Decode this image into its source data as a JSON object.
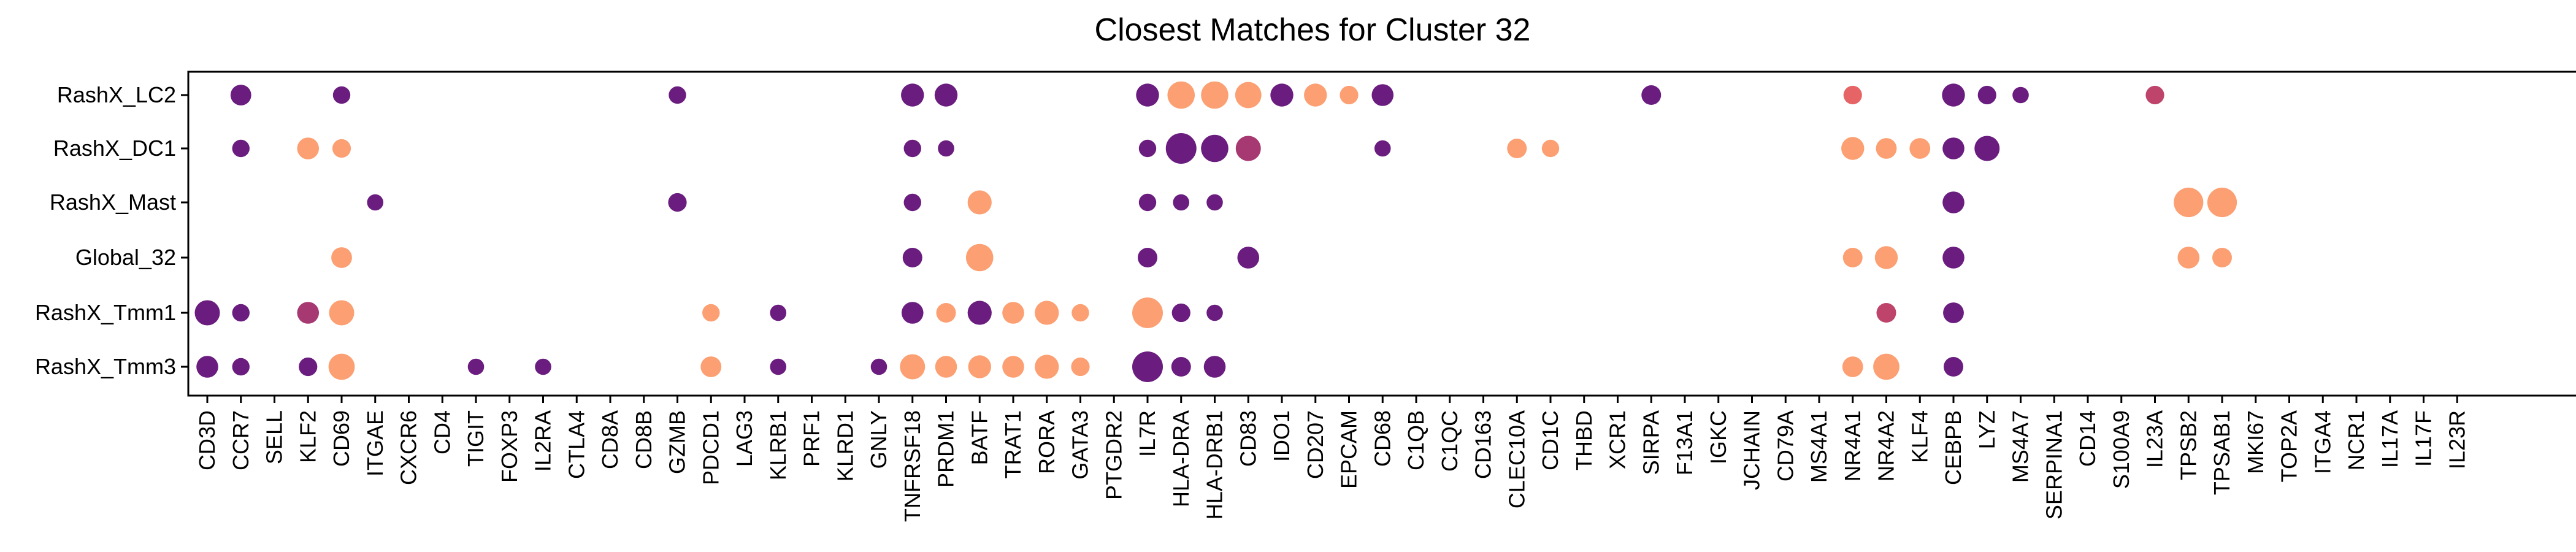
{
  "chart_data": {
    "type": "scatter",
    "title": "Closest Matches for Cluster 32",
    "xlabel": "",
    "ylabel": "",
    "grid": false,
    "legend": "none",
    "genes": [
      "CD3D",
      "CCR7",
      "SELL",
      "KLF2",
      "CD69",
      "ITGAE",
      "CXCR6",
      "CD4",
      "TIGIT",
      "FOXP3",
      "IL2RA",
      "CTLA4",
      "CD8A",
      "CD8B",
      "GZMB",
      "PDCD1",
      "LAG3",
      "KLRB1",
      "PRF1",
      "KLRD1",
      "GNLY",
      "TNFRSF18",
      "PRDM1",
      "BATF",
      "TRAT1",
      "RORA",
      "GATA3",
      "PTGDR2",
      "IL7R",
      "HLA-DRA",
      "HLA-DRB1",
      "CD83",
      "IDO1",
      "CD207",
      "EPCAM",
      "CD68",
      "C1QB",
      "C1QC",
      "CD163",
      "CLEC10A",
      "CD1C",
      "THBD",
      "XCR1",
      "SIRPA",
      "F13A1",
      "IGKC",
      "JCHAIN",
      "CD79A",
      "MS4A1",
      "NR4A1",
      "NR4A2",
      "KLF4",
      "CEBPB",
      "LYZ",
      "MS4A7",
      "SERPINA1",
      "CD14",
      "S100A9",
      "IL23A",
      "TPSB2",
      "TPSAB1",
      "MKI67",
      "TOP2A",
      "ITGA4",
      "NCR1",
      "IL17A",
      "IL17F",
      "IL23R"
    ],
    "rows": [
      "RashX_LC2",
      "RashX_DC1",
      "RashX_Mast",
      "Global_32",
      "RashX_Tmm1",
      "RashX_Tmm3"
    ],
    "color_scale": {
      "low": "#6a1d7f",
      "mid": "#e25563",
      "high": "#fca073"
    },
    "points": [
      {
        "row": "RashX_LC2",
        "gene": "CCR7",
        "size": 0.55,
        "color": 0.0
      },
      {
        "row": "RashX_LC2",
        "gene": "CD69",
        "size": 0.4,
        "color": 0.0
      },
      {
        "row": "RashX_LC2",
        "gene": "GZMB",
        "size": 0.4,
        "color": 0.0
      },
      {
        "row": "RashX_LC2",
        "gene": "TNFRSF18",
        "size": 0.65,
        "color": 0.0
      },
      {
        "row": "RashX_LC2",
        "gene": "PRDM1",
        "size": 0.65,
        "color": 0.0
      },
      {
        "row": "RashX_LC2",
        "gene": "IL7R",
        "size": 0.65,
        "color": 0.0
      },
      {
        "row": "RashX_LC2",
        "gene": "HLA-DRA",
        "size": 0.85,
        "color": 1.0
      },
      {
        "row": "RashX_LC2",
        "gene": "HLA-DRB1",
        "size": 0.85,
        "color": 1.0
      },
      {
        "row": "RashX_LC2",
        "gene": "CD83",
        "size": 0.8,
        "color": 1.0
      },
      {
        "row": "RashX_LC2",
        "gene": "IDO1",
        "size": 0.65,
        "color": 0.0
      },
      {
        "row": "RashX_LC2",
        "gene": "CD207",
        "size": 0.65,
        "color": 1.0
      },
      {
        "row": "RashX_LC2",
        "gene": "EPCAM",
        "size": 0.45,
        "color": 1.0
      },
      {
        "row": "RashX_LC2",
        "gene": "CD68",
        "size": 0.6,
        "color": 0.0
      },
      {
        "row": "RashX_LC2",
        "gene": "SIRPA",
        "size": 0.5,
        "color": 0.0
      },
      {
        "row": "RashX_LC2",
        "gene": "NR4A1",
        "size": 0.45,
        "color": 0.6
      },
      {
        "row": "RashX_LC2",
        "gene": "CEBPB",
        "size": 0.65,
        "color": 0.0
      },
      {
        "row": "RashX_LC2",
        "gene": "LYZ",
        "size": 0.45,
        "color": 0.0
      },
      {
        "row": "RashX_LC2",
        "gene": "MS4A7",
        "size": 0.35,
        "color": 0.0
      },
      {
        "row": "RashX_LC2",
        "gene": "IL23A",
        "size": 0.45,
        "color": 0.35
      },
      {
        "row": "RashX_DC1",
        "gene": "CCR7",
        "size": 0.4,
        "color": 0.0
      },
      {
        "row": "RashX_DC1",
        "gene": "KLF2",
        "size": 0.6,
        "color": 1.0
      },
      {
        "row": "RashX_DC1",
        "gene": "CD69",
        "size": 0.45,
        "color": 1.0
      },
      {
        "row": "RashX_DC1",
        "gene": "TNFRSF18",
        "size": 0.4,
        "color": 0.0
      },
      {
        "row": "RashX_DC1",
        "gene": "PRDM1",
        "size": 0.35,
        "color": 0.0
      },
      {
        "row": "RashX_DC1",
        "gene": "IL7R",
        "size": 0.4,
        "color": 0.0
      },
      {
        "row": "RashX_DC1",
        "gene": "HLA-DRA",
        "size": 1.0,
        "color": 0.0
      },
      {
        "row": "RashX_DC1",
        "gene": "HLA-DRB1",
        "size": 0.85,
        "color": 0.0
      },
      {
        "row": "RashX_DC1",
        "gene": "CD83",
        "size": 0.75,
        "color": 0.25
      },
      {
        "row": "RashX_DC1",
        "gene": "CD68",
        "size": 0.35,
        "color": 0.0
      },
      {
        "row": "RashX_DC1",
        "gene": "CLEC10A",
        "size": 0.5,
        "color": 1.0
      },
      {
        "row": "RashX_DC1",
        "gene": "CD1C",
        "size": 0.4,
        "color": 1.0
      },
      {
        "row": "RashX_DC1",
        "gene": "NR4A1",
        "size": 0.65,
        "color": 1.0
      },
      {
        "row": "RashX_DC1",
        "gene": "NR4A2",
        "size": 0.55,
        "color": 1.0
      },
      {
        "row": "RashX_DC1",
        "gene": "KLF4",
        "size": 0.55,
        "color": 1.0
      },
      {
        "row": "RashX_DC1",
        "gene": "CEBPB",
        "size": 0.6,
        "color": 0.0
      },
      {
        "row": "RashX_DC1",
        "gene": "LYZ",
        "size": 0.75,
        "color": 0.0
      },
      {
        "row": "RashX_Mast",
        "gene": "ITGAE",
        "size": 0.35,
        "color": 0.0
      },
      {
        "row": "RashX_Mast",
        "gene": "GZMB",
        "size": 0.45,
        "color": 0.0
      },
      {
        "row": "RashX_Mast",
        "gene": "TNFRSF18",
        "size": 0.4,
        "color": 0.0
      },
      {
        "row": "RashX_Mast",
        "gene": "BATF",
        "size": 0.7,
        "color": 1.0
      },
      {
        "row": "RashX_Mast",
        "gene": "IL7R",
        "size": 0.4,
        "color": 0.0
      },
      {
        "row": "RashX_Mast",
        "gene": "HLA-DRA",
        "size": 0.35,
        "color": 0.0
      },
      {
        "row": "RashX_Mast",
        "gene": "HLA-DRB1",
        "size": 0.35,
        "color": 0.0
      },
      {
        "row": "RashX_Mast",
        "gene": "CEBPB",
        "size": 0.6,
        "color": 0.0
      },
      {
        "row": "RashX_Mast",
        "gene": "TPSB2",
        "size": 0.95,
        "color": 1.0
      },
      {
        "row": "RashX_Mast",
        "gene": "TPSAB1",
        "size": 0.95,
        "color": 1.0
      },
      {
        "row": "Global_32",
        "gene": "CD69",
        "size": 0.55,
        "color": 1.0
      },
      {
        "row": "Global_32",
        "gene": "TNFRSF18",
        "size": 0.5,
        "color": 0.0
      },
      {
        "row": "Global_32",
        "gene": "BATF",
        "size": 0.85,
        "color": 1.0
      },
      {
        "row": "Global_32",
        "gene": "IL7R",
        "size": 0.5,
        "color": 0.0
      },
      {
        "row": "Global_32",
        "gene": "CD83",
        "size": 0.6,
        "color": 0.0
      },
      {
        "row": "Global_32",
        "gene": "NR4A1",
        "size": 0.5,
        "color": 1.0
      },
      {
        "row": "Global_32",
        "gene": "NR4A2",
        "size": 0.65,
        "color": 1.0
      },
      {
        "row": "Global_32",
        "gene": "CEBPB",
        "size": 0.6,
        "color": 0.0
      },
      {
        "row": "Global_32",
        "gene": "TPSB2",
        "size": 0.6,
        "color": 1.0
      },
      {
        "row": "Global_32",
        "gene": "TPSAB1",
        "size": 0.5,
        "color": 1.0
      },
      {
        "row": "RashX_Tmm1",
        "gene": "CD3D",
        "size": 0.75,
        "color": 0.0
      },
      {
        "row": "RashX_Tmm1",
        "gene": "CCR7",
        "size": 0.4,
        "color": 0.0
      },
      {
        "row": "RashX_Tmm1",
        "gene": "KLF2",
        "size": 0.6,
        "color": 0.25
      },
      {
        "row": "RashX_Tmm1",
        "gene": "CD69",
        "size": 0.75,
        "color": 1.0
      },
      {
        "row": "RashX_Tmm1",
        "gene": "PDCD1",
        "size": 0.4,
        "color": 1.0
      },
      {
        "row": "RashX_Tmm1",
        "gene": "KLRB1",
        "size": 0.35,
        "color": 0.0
      },
      {
        "row": "RashX_Tmm1",
        "gene": "TNFRSF18",
        "size": 0.6,
        "color": 0.0
      },
      {
        "row": "RashX_Tmm1",
        "gene": "PRDM1",
        "size": 0.5,
        "color": 1.0
      },
      {
        "row": "RashX_Tmm1",
        "gene": "BATF",
        "size": 0.7,
        "color": 0.0
      },
      {
        "row": "RashX_Tmm1",
        "gene": "TRAT1",
        "size": 0.6,
        "color": 1.0
      },
      {
        "row": "RashX_Tmm1",
        "gene": "RORA",
        "size": 0.7,
        "color": 1.0
      },
      {
        "row": "RashX_Tmm1",
        "gene": "GATA3",
        "size": 0.4,
        "color": 1.0
      },
      {
        "row": "RashX_Tmm1",
        "gene": "IL7R",
        "size": 1.0,
        "color": 1.0
      },
      {
        "row": "RashX_Tmm1",
        "gene": "HLA-DRA",
        "size": 0.45,
        "color": 0.0
      },
      {
        "row": "RashX_Tmm1",
        "gene": "HLA-DRB1",
        "size": 0.35,
        "color": 0.0
      },
      {
        "row": "RashX_Tmm1",
        "gene": "NR4A2",
        "size": 0.5,
        "color": 0.35
      },
      {
        "row": "RashX_Tmm1",
        "gene": "CEBPB",
        "size": 0.55,
        "color": 0.0
      },
      {
        "row": "RashX_Tmm3",
        "gene": "CD3D",
        "size": 0.6,
        "color": 0.0
      },
      {
        "row": "RashX_Tmm3",
        "gene": "CCR7",
        "size": 0.4,
        "color": 0.0
      },
      {
        "row": "RashX_Tmm3",
        "gene": "KLF2",
        "size": 0.45,
        "color": 0.0
      },
      {
        "row": "RashX_Tmm3",
        "gene": "CD69",
        "size": 0.8,
        "color": 1.0
      },
      {
        "row": "RashX_Tmm3",
        "gene": "TIGIT",
        "size": 0.35,
        "color": 0.0
      },
      {
        "row": "RashX_Tmm3",
        "gene": "IL2RA",
        "size": 0.35,
        "color": 0.0
      },
      {
        "row": "RashX_Tmm3",
        "gene": "PDCD1",
        "size": 0.55,
        "color": 1.0
      },
      {
        "row": "RashX_Tmm3",
        "gene": "KLRB1",
        "size": 0.35,
        "color": 0.0
      },
      {
        "row": "RashX_Tmm3",
        "gene": "GNLY",
        "size": 0.35,
        "color": 0.0
      },
      {
        "row": "RashX_Tmm3",
        "gene": "TNFRSF18",
        "size": 0.75,
        "color": 1.0
      },
      {
        "row": "RashX_Tmm3",
        "gene": "PRDM1",
        "size": 0.6,
        "color": 1.0
      },
      {
        "row": "RashX_Tmm3",
        "gene": "BATF",
        "size": 0.65,
        "color": 1.0
      },
      {
        "row": "RashX_Tmm3",
        "gene": "TRAT1",
        "size": 0.6,
        "color": 1.0
      },
      {
        "row": "RashX_Tmm3",
        "gene": "RORA",
        "size": 0.7,
        "color": 1.0
      },
      {
        "row": "RashX_Tmm3",
        "gene": "GATA3",
        "size": 0.45,
        "color": 1.0
      },
      {
        "row": "RashX_Tmm3",
        "gene": "IL7R",
        "size": 1.0,
        "color": 0.0
      },
      {
        "row": "RashX_Tmm3",
        "gene": "HLA-DRA",
        "size": 0.5,
        "color": 0.0
      },
      {
        "row": "RashX_Tmm3",
        "gene": "HLA-DRB1",
        "size": 0.6,
        "color": 0.0
      },
      {
        "row": "RashX_Tmm3",
        "gene": "NR4A1",
        "size": 0.55,
        "color": 1.0
      },
      {
        "row": "RashX_Tmm3",
        "gene": "NR4A2",
        "size": 0.8,
        "color": 1.0
      },
      {
        "row": "RashX_Tmm3",
        "gene": "CEBPB",
        "size": 0.5,
        "color": 0.0
      }
    ]
  }
}
